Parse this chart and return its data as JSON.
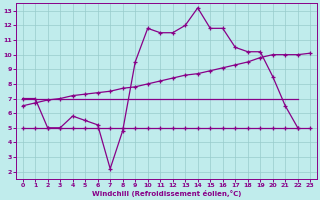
{
  "xlabel": "Windchill (Refroidissement éolien,°C)",
  "ylabel": "",
  "bg_color": "#c0ecec",
  "grid_color": "#98cccc",
  "line_color": "#880088",
  "x_ticks": [
    0,
    1,
    2,
    3,
    4,
    5,
    6,
    7,
    8,
    9,
    10,
    11,
    12,
    13,
    14,
    15,
    16,
    17,
    18,
    19,
    20,
    21,
    22,
    23
  ],
  "y_ticks": [
    2,
    3,
    4,
    5,
    6,
    7,
    8,
    9,
    10,
    11,
    12,
    13
  ],
  "ylim": [
    1.5,
    13.5
  ],
  "xlim": [
    -0.5,
    23.5
  ],
  "line1_x": [
    0,
    1,
    2,
    3,
    4,
    5,
    6,
    7,
    8,
    9,
    10,
    11,
    12,
    13,
    14,
    15,
    16,
    17,
    18,
    19,
    20,
    21,
    22
  ],
  "line1_y": [
    7.0,
    7.0,
    5.0,
    5.0,
    5.8,
    5.5,
    5.2,
    2.2,
    4.8,
    9.5,
    11.8,
    11.5,
    11.5,
    12.0,
    13.2,
    11.8,
    11.8,
    10.5,
    10.2,
    10.2,
    8.5,
    6.5,
    5.0
  ],
  "line2_x": [
    0,
    1,
    2,
    3,
    4,
    5,
    6,
    7,
    8,
    9,
    10,
    15,
    20,
    22
  ],
  "line2_y": [
    7.0,
    7.0,
    7.0,
    7.0,
    7.0,
    7.0,
    7.0,
    7.0,
    7.0,
    7.0,
    7.0,
    7.0,
    7.0,
    7.0
  ],
  "line3_x": [
    0,
    1,
    2,
    3,
    4,
    5,
    6,
    7,
    8,
    9,
    10,
    11,
    12,
    13,
    14,
    15,
    16,
    17,
    18,
    19,
    20,
    21,
    22,
    23
  ],
  "line3_y": [
    5.0,
    5.0,
    5.0,
    5.0,
    5.0,
    5.0,
    5.0,
    5.0,
    5.0,
    5.0,
    5.0,
    5.0,
    5.0,
    5.0,
    5.0,
    5.0,
    5.0,
    5.0,
    5.0,
    5.0,
    5.0,
    5.0,
    5.0,
    5.0
  ],
  "line4_x": [
    0,
    1,
    2,
    3,
    4,
    5,
    6,
    7,
    8,
    9,
    10,
    11,
    12,
    13,
    14,
    15,
    16,
    17,
    18,
    19,
    20,
    21,
    22,
    23
  ],
  "line4_y": [
    6.5,
    6.7,
    6.9,
    7.0,
    7.2,
    7.3,
    7.4,
    7.5,
    7.7,
    7.8,
    8.0,
    8.2,
    8.4,
    8.6,
    8.7,
    8.9,
    9.1,
    9.3,
    9.5,
    9.8,
    10.0,
    10.0,
    10.0,
    10.1
  ]
}
